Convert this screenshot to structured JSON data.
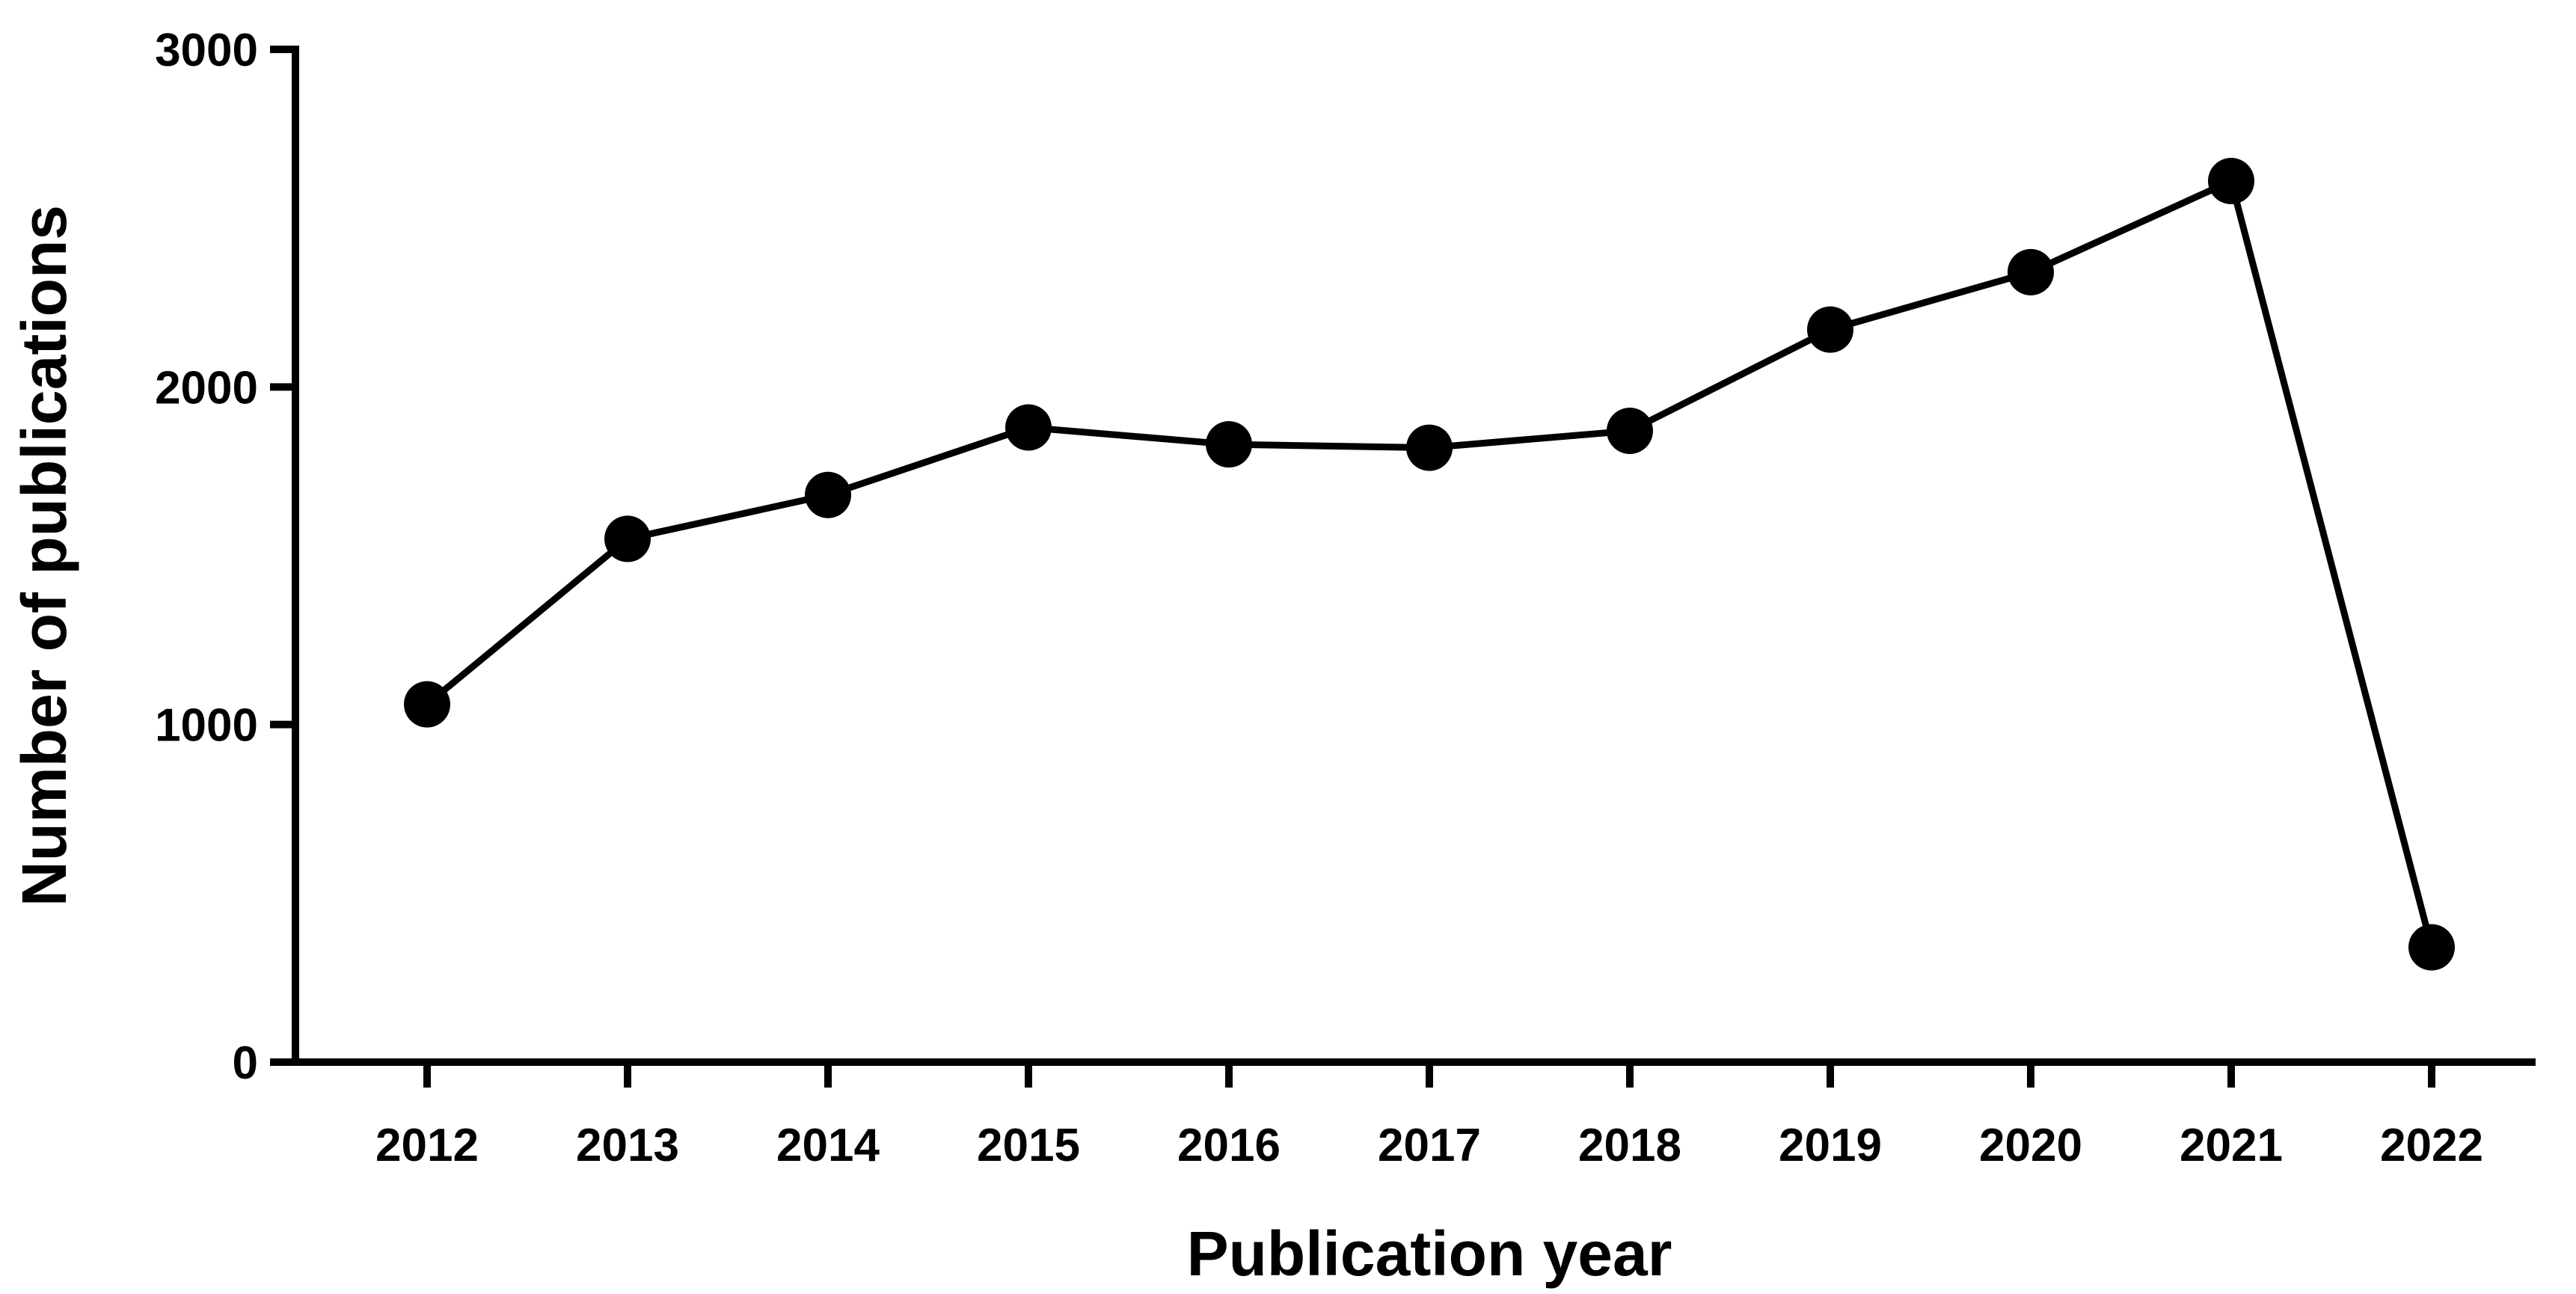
{
  "figure": {
    "background": "#ffffff",
    "text_color": "#000000"
  },
  "chart_data": {
    "type": "line",
    "title": "",
    "xlabel": "Publication year",
    "ylabel": "Number of publications",
    "x": [
      "2012",
      "2013",
      "2014",
      "2015",
      "2016",
      "2017",
      "2018",
      "2019",
      "2020",
      "2021",
      "2022"
    ],
    "series": [
      {
        "name": "Number of publications",
        "values": [
          1060,
          1550,
          1680,
          1880,
          1830,
          1820,
          1870,
          2170,
          2340,
          2610,
          340
        ]
      }
    ],
    "ylim": [
      0,
      3000
    ],
    "yticks": [
      0,
      1000,
      2000,
      3000
    ],
    "grid": false,
    "legend": "none",
    "line_color": "#000000",
    "marker": "filled-circle",
    "marker_color": "#000000",
    "axis_color": "#000000"
  }
}
